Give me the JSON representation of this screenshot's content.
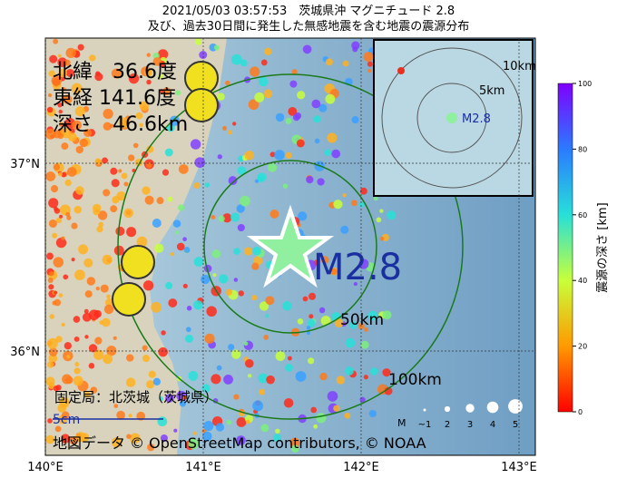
{
  "title": [
    "2021/05/03 03:57:53　茨城県沖 マグニチュード 2.8",
    "及び、過去30日間に発生した無感地震を含む地震の震源分布"
  ],
  "info": [
    "北緯　36.6度",
    "東経 141.6度",
    "深さ　46.6km"
  ],
  "epicenter_label": "M2.8",
  "rings": [
    "50km",
    "100km"
  ],
  "inset": {
    "rings": [
      "10km",
      "5km"
    ],
    "label": "M2.8"
  },
  "station": "固定局：北茨城（茨城県）",
  "scale": "5cm",
  "credit": "地図データ © OpenStreetMap contributors, © NOAA",
  "axes": {
    "lat": [
      {
        "value": 37,
        "label": "37°N"
      },
      {
        "value": 36,
        "label": "36°N"
      }
    ],
    "lon": [
      {
        "value": 140,
        "label": "140°E"
      },
      {
        "value": 141,
        "label": "141°E"
      },
      {
        "value": 142,
        "label": "142°E"
      },
      {
        "value": 143,
        "label": "143°E"
      }
    ]
  },
  "colorbar": {
    "label": "震源の深さ [km]",
    "ticks": [
      0,
      20,
      40,
      60,
      80,
      100
    ]
  },
  "magnitude_legend": {
    "label": "M",
    "sizes": [
      "~1",
      "2",
      "3",
      "4",
      "5"
    ]
  }
}
